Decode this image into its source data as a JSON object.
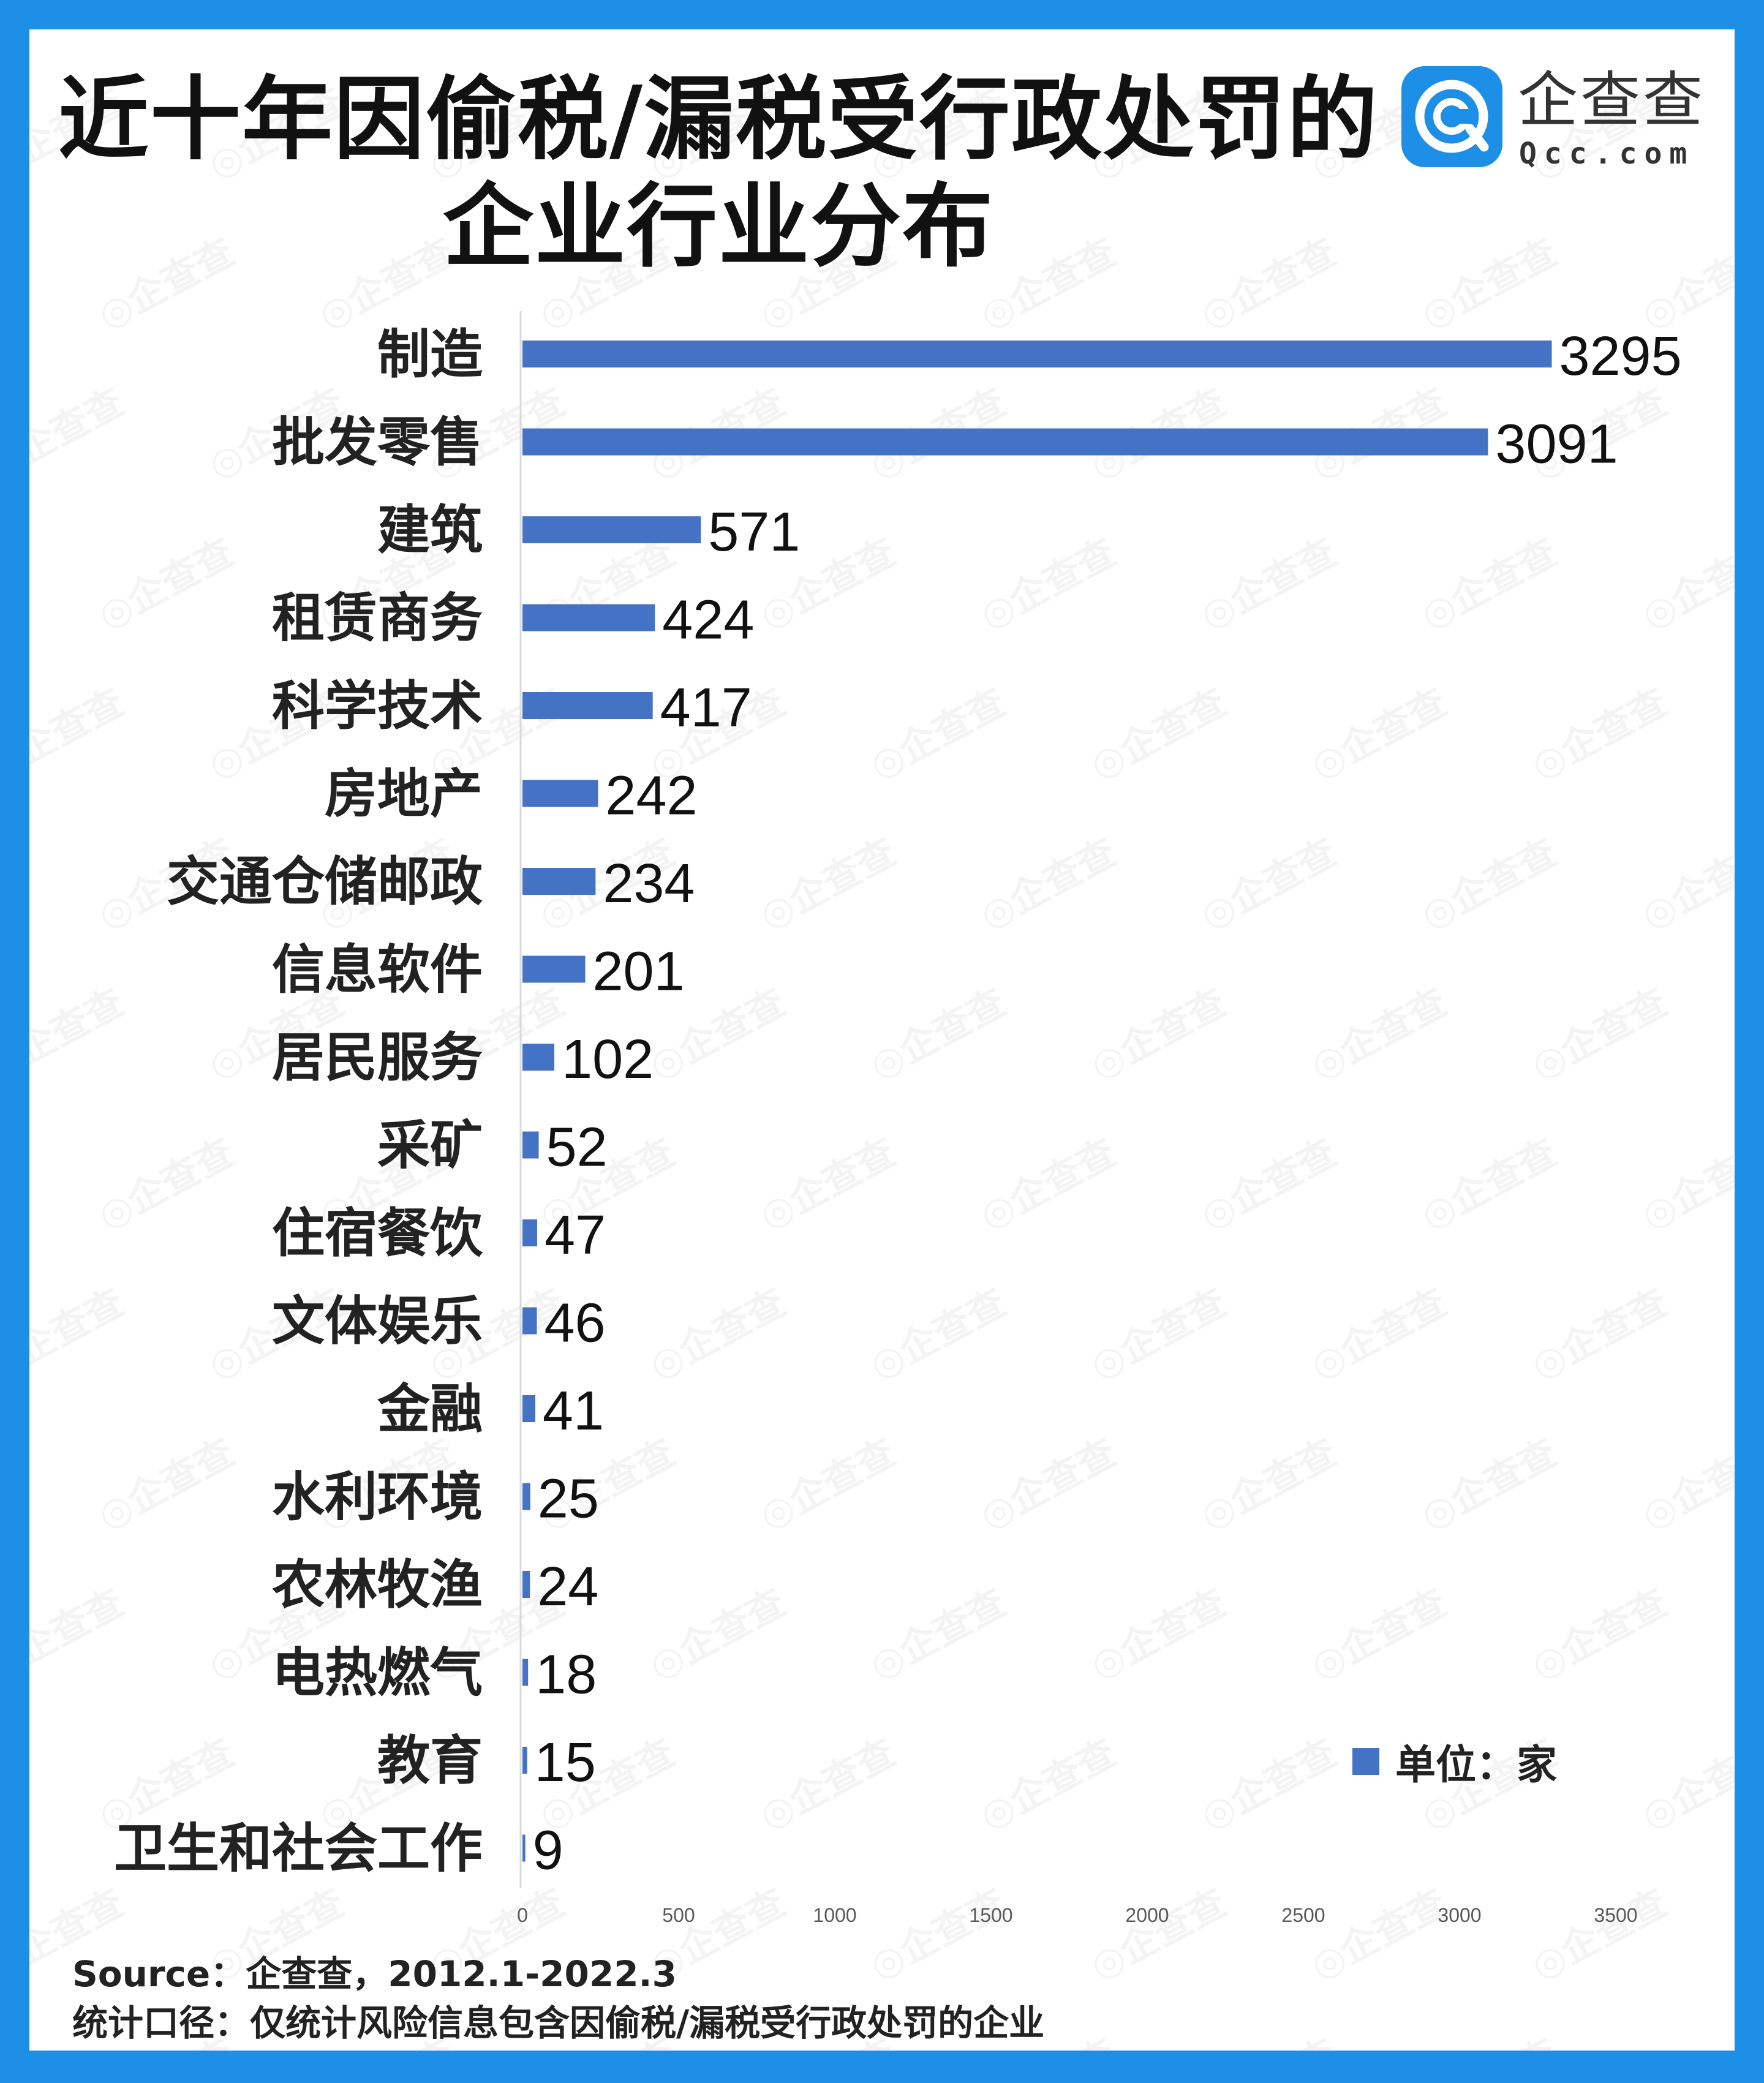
{
  "header": {
    "title_line1": "近十年因偷税/漏税受行政处罚的",
    "title_line2": "企业行业分布"
  },
  "logo": {
    "name_cn": "企查查",
    "name_en": "Qcc.com",
    "watermark_text": "企查查",
    "color": "#1e8fe6"
  },
  "chart_data": {
    "type": "bar",
    "orientation": "horizontal",
    "categories": [
      "制造",
      "批发零售",
      "建筑",
      "租赁商务",
      "科学技术",
      "房地产",
      "交通仓储邮政",
      "信息软件",
      "居民服务",
      "采矿",
      "住宿餐饮",
      "文体娱乐",
      "金融",
      "水利环境",
      "农林牧渔",
      "电热燃气",
      "教育",
      "卫生和社会工作"
    ],
    "series": [
      {
        "name": "单位：家",
        "values": [
          3295,
          3091,
          571,
          424,
          417,
          242,
          234,
          201,
          102,
          52,
          47,
          46,
          41,
          25,
          24,
          18,
          15,
          9
        ]
      }
    ],
    "x_ticks": [
      "0",
      "500",
      "1000",
      "1500",
      "2000",
      "2500",
      "3000",
      "3500"
    ],
    "xlim": [
      0,
      3500
    ],
    "bar_color": "#4472c4",
    "grid": false,
    "legend_position": "bottom-right"
  },
  "footer": {
    "source": "Source：企查查，2012.1-2022.3",
    "note": "统计口径：仅统计风险信息包含因偷税/漏税受行政处罚的企业"
  }
}
